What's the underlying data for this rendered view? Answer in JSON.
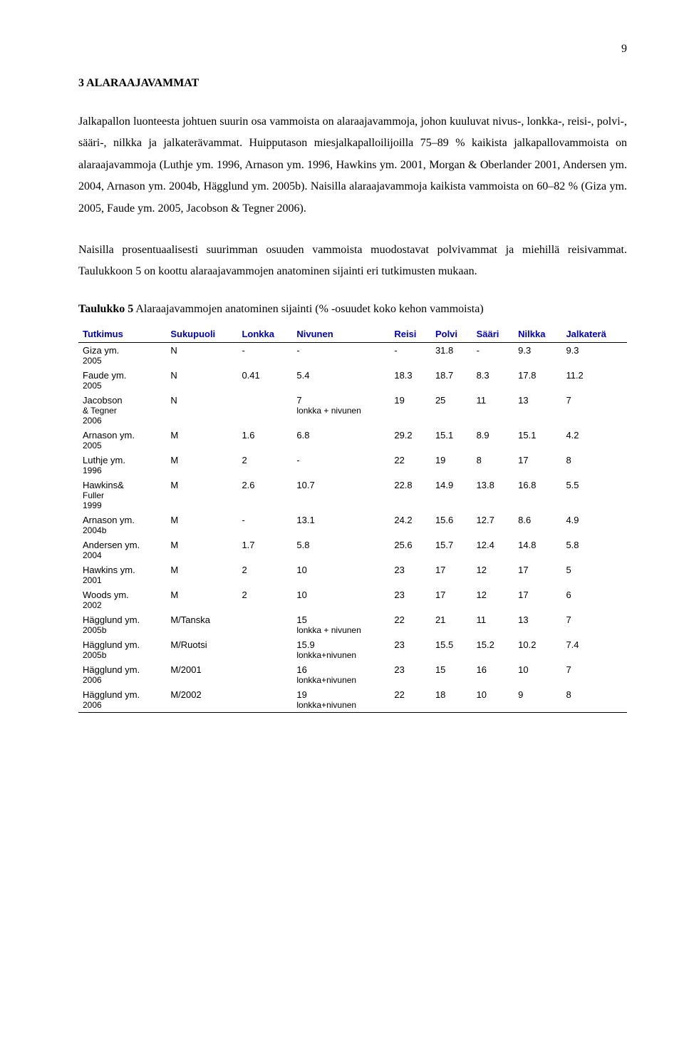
{
  "page_number": "9",
  "section_title": "3 ALARAAJAVAMMAT",
  "para1": "Jalkapallon luonteesta johtuen suurin osa vammoista on alaraajavammoja, johon kuuluvat nivus-, lonkka-, reisi-, polvi-, sääri-, nilkka ja jalkaterävammat. Huipputason miesjalkapalloilijoilla 75–89 % kaikista jalkapallovammoista on alaraajavammoja (Luthje ym. 1996, Arnason ym. 1996, Hawkins ym. 2001, Morgan & Oberlander 2001, Andersen ym. 2004, Arnason ym. 2004b, Hägglund ym. 2005b). Naisilla alaraajavammoja kaikista vammoista on 60–82 % (Giza ym. 2005, Faude ym. 2005, Jacobson & Tegner 2006).",
  "para2": "Naisilla prosentuaalisesti suurimman osuuden vammoista muodostavat polvivammat ja miehillä reisivammat. Taulukkoon 5 on koottu alaraajavammojen anatominen sijainti eri tutkimusten mukaan.",
  "table_caption_bold": "Taulukko 5",
  "table_caption_rest": " Alaraajavammojen anatominen sijainti (% -osuudet koko kehon vammoista)",
  "table": {
    "columns": [
      "Tutkimus",
      "Sukupuoli",
      "Lonkka",
      "Nivunen",
      "Reisi",
      "Polvi",
      "Sääri",
      "Nilkka",
      "Jalkaterä"
    ],
    "rows": [
      {
        "study": "Giza ym. 2005",
        "sex": "N",
        "lonkka": "-",
        "nivunen": "-",
        "reisi": "-",
        "polvi": "31.8",
        "saari": "-",
        "nilkka": "9.3",
        "jalk": "9.3"
      },
      {
        "study": "Faude ym. 2005",
        "sex": "N",
        "lonkka": "0.41",
        "nivunen": "5.4",
        "reisi": "18.3",
        "polvi": "18.7",
        "saari": "8.3",
        "nilkka": "17.8",
        "jalk": "11.2"
      },
      {
        "study": "Jacobson & Tegner 2006",
        "sex": "N",
        "lonkka": "",
        "nivunen": "7",
        "nivunen_sub": "lonkka + nivunen",
        "reisi": "19",
        "polvi": "25",
        "saari": "11",
        "nilkka": "13",
        "jalk": "7"
      },
      {
        "study": "Arnason ym. 2005",
        "sex": "M",
        "lonkka": "1.6",
        "nivunen": "6.8",
        "reisi": "29.2",
        "polvi": "15.1",
        "saari": "8.9",
        "nilkka": "15.1",
        "jalk": "4.2"
      },
      {
        "study": "Luthje ym. 1996",
        "sex": "M",
        "lonkka": "2",
        "nivunen": "-",
        "reisi": "22",
        "polvi": "19",
        "saari": "8",
        "nilkka": "17",
        "jalk": "8"
      },
      {
        "study": "Hawkins& Fuller 1999",
        "sex": "M",
        "lonkka": "2.6",
        "nivunen": "10.7",
        "reisi": "22.8",
        "polvi": "14.9",
        "saari": "13.8",
        "nilkka": "16.8",
        "jalk": "5.5"
      },
      {
        "study": "Arnason ym. 2004b",
        "sex": "M",
        "lonkka": "-",
        "nivunen": "13.1",
        "reisi": "24.2",
        "polvi": "15.6",
        "saari": "12.7",
        "nilkka": "8.6",
        "jalk": "4.9"
      },
      {
        "study": "Andersen ym. 2004",
        "sex": "M",
        "lonkka": "1.7",
        "nivunen": "5.8",
        "reisi": "25.6",
        "polvi": "15.7",
        "saari": "12.4",
        "nilkka": "14.8",
        "jalk": "5.8"
      },
      {
        "study": "Hawkins ym. 2001",
        "sex": "M",
        "lonkka": "2",
        "nivunen": "10",
        "reisi": "23",
        "polvi": "17",
        "saari": "12",
        "nilkka": "17",
        "jalk": "5"
      },
      {
        "study": "Woods ym. 2002",
        "sex": "M",
        "lonkka": "2",
        "nivunen": "10",
        "reisi": "23",
        "polvi": "17",
        "saari": "12",
        "nilkka": "17",
        "jalk": "6"
      },
      {
        "study": "Hägglund ym. 2005b",
        "sex": "M/Tanska",
        "lonkka": "",
        "nivunen": "15",
        "nivunen_sub": "lonkka + nivunen",
        "reisi": "22",
        "polvi": "21",
        "saari": "11",
        "nilkka": "13",
        "jalk": "7"
      },
      {
        "study": "Hägglund ym. 2005b",
        "sex": "M/Ruotsi",
        "lonkka": "",
        "nivunen": "15.9",
        "nivunen_sub": "lonkka+nivunen",
        "reisi": "23",
        "polvi": "15.5",
        "saari": "15.2",
        "nilkka": "10.2",
        "jalk": "7.4"
      },
      {
        "study": "Hägglund ym. 2006",
        "sex": "M/2001",
        "lonkka": "",
        "nivunen": "16",
        "nivunen_sub": "lonkka+nivunen",
        "reisi": "23",
        "polvi": "15",
        "saari": "16",
        "nilkka": "10",
        "jalk": "7"
      },
      {
        "study": "Hägglund ym. 2006",
        "sex": "M/2002",
        "lonkka": "",
        "nivunen": "19",
        "nivunen_sub": "lonkka+nivunen",
        "reisi": "22",
        "polvi": "18",
        "saari": "10",
        "nilkka": "9",
        "jalk": "8"
      }
    ]
  }
}
